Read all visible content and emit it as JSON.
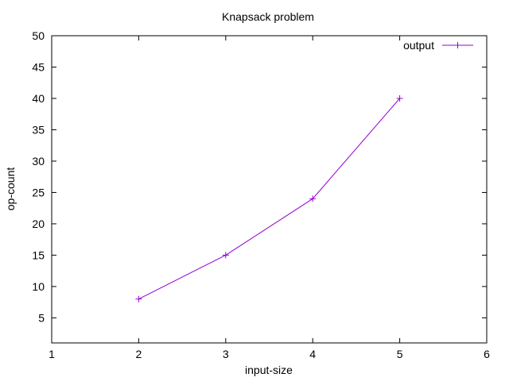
{
  "chart_data": {
    "type": "line",
    "title": "Knapsack problem",
    "xlabel": "input-size",
    "ylabel": "op-count",
    "xlim": [
      1,
      6
    ],
    "ylim": [
      1,
      50
    ],
    "x_ticks": [
      1,
      2,
      3,
      4,
      5,
      6
    ],
    "y_ticks": [
      5,
      10,
      15,
      20,
      25,
      30,
      35,
      40,
      45,
      50
    ],
    "grid": false,
    "legend_position": "top-right",
    "series": [
      {
        "name": "output",
        "color": "#9400d3",
        "marker": "plus",
        "x": [
          2,
          3,
          4,
          5
        ],
        "y": [
          8,
          15,
          24,
          40
        ]
      }
    ]
  }
}
